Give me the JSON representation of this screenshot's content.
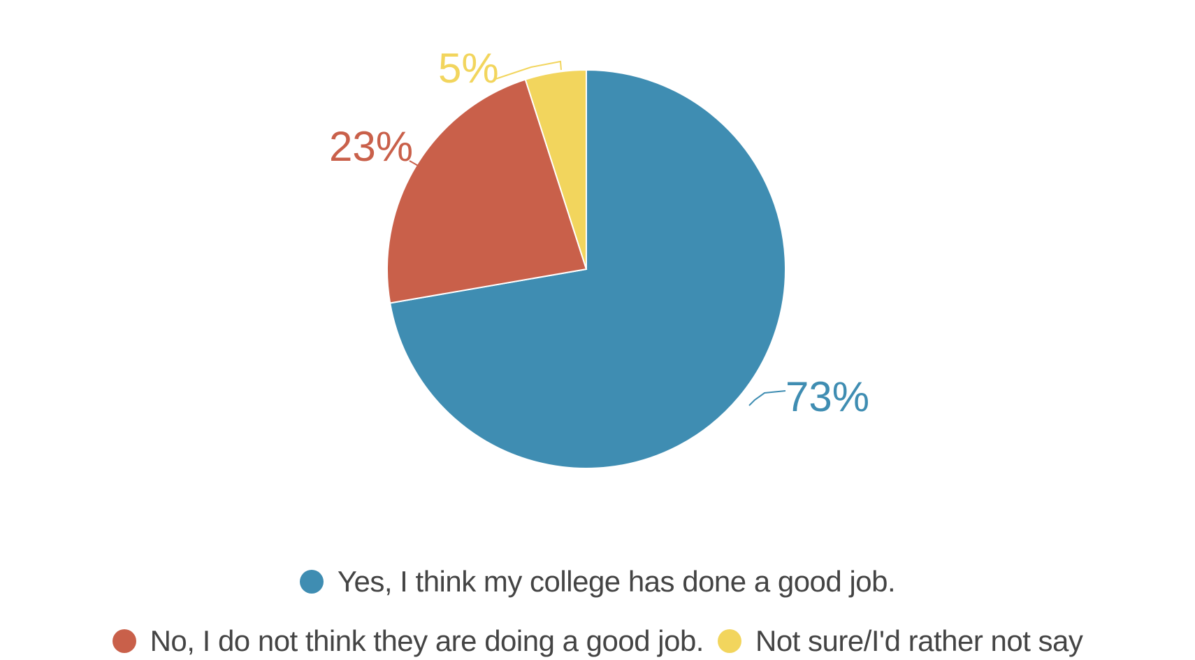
{
  "chart_data": {
    "type": "pie",
    "title": "",
    "categories": [
      "Yes, I think my college has done a good job.",
      "No, I do not think they are doing a good job.",
      "Not sure/I'd rather not say"
    ],
    "values": [
      73,
      23,
      5
    ],
    "labels": [
      "73%",
      "23%",
      "5%"
    ],
    "colors": [
      "#3f8db2",
      "#c9604a",
      "#f2d55d"
    ],
    "legend_position": "bottom"
  },
  "colors": {
    "yes": "#3f8db2",
    "no": "#c9604a",
    "unsure": "#f2d55d",
    "legend_text": "#444444"
  },
  "labels": {
    "yes_pct": "73%",
    "no_pct": "23%",
    "unsure_pct": "5%"
  },
  "legend": {
    "items": [
      {
        "label": "Yes, I think my college has done a good job.",
        "color": "#3f8db2"
      },
      {
        "label": "No, I do not think they are doing a good job.",
        "color": "#c9604a"
      },
      {
        "label": "Not sure/I'd rather not say",
        "color": "#f2d55d"
      }
    ]
  }
}
